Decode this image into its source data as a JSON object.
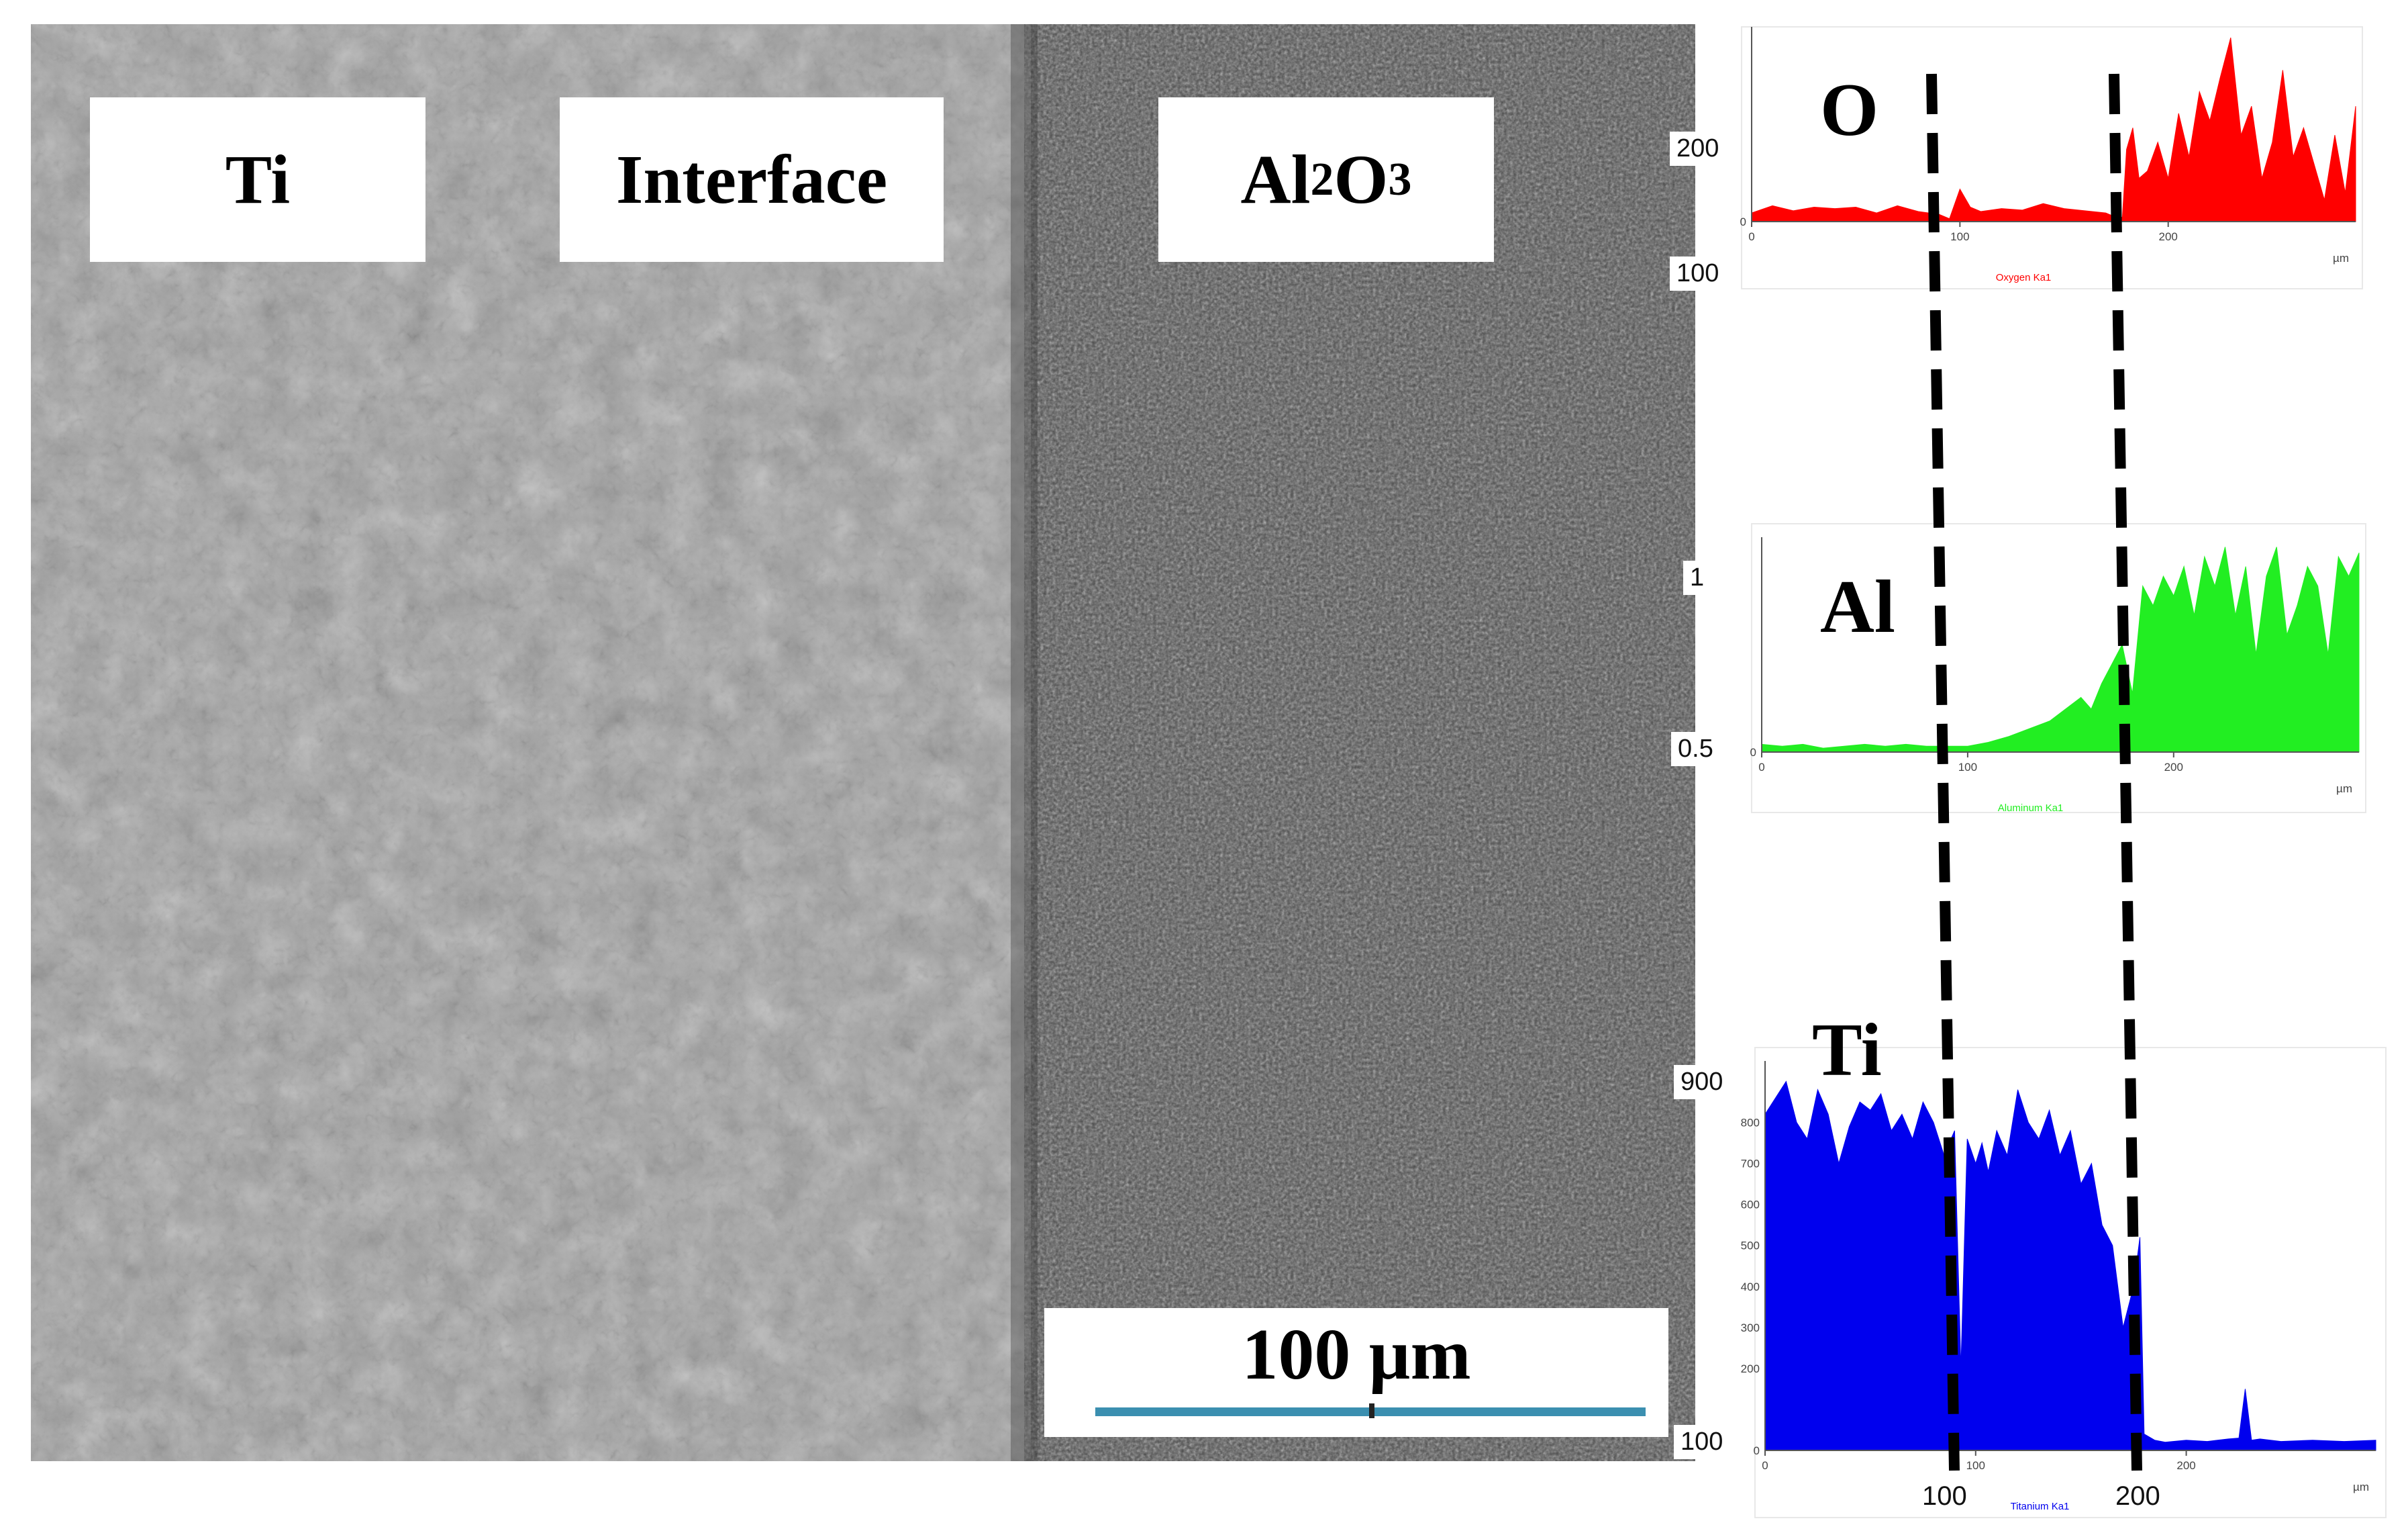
{
  "colors": {
    "oxygen": "#ff0000",
    "aluminum": "#22ee22",
    "titanium": "#0000ee",
    "scale_bar": "#3b8fb0",
    "ti_region": "#a3a3a3",
    "al2o3_region": "#4a4a4a"
  },
  "micrograph": {
    "labels": {
      "ti": "Ti",
      "interface_label": "Interface",
      "al2o3_main": "Al",
      "al2o3_sub1": "2",
      "al2o3_mid": "O",
      "al2o3_sub2": "3"
    },
    "scale_bar_label": "100 µm"
  },
  "chart_data": [
    {
      "type": "area",
      "element": "O",
      "caption": "Oxygen Ka1",
      "x_unit": "µm",
      "y_ticks_printed": [
        "200",
        "100"
      ],
      "y_tick_values": [
        200,
        100
      ],
      "x_tick_labels": [
        "0",
        "100",
        "200"
      ],
      "x_ticks": [
        0,
        100,
        200
      ],
      "xlim": [
        0,
        290
      ],
      "ylim": [
        0,
        270
      ],
      "boundaries": [
        93,
        180
      ],
      "x": [
        0,
        10,
        20,
        30,
        40,
        50,
        60,
        70,
        80,
        90,
        95,
        100,
        105,
        110,
        120,
        130,
        140,
        150,
        160,
        170,
        175,
        178,
        180,
        183,
        186,
        190,
        195,
        200,
        205,
        210,
        215,
        220,
        225,
        230,
        235,
        240,
        245,
        250,
        255,
        260,
        265,
        270,
        275,
        280,
        285,
        290
      ],
      "y": [
        12,
        22,
        15,
        20,
        18,
        20,
        12,
        22,
        14,
        10,
        4,
        45,
        20,
        14,
        18,
        16,
        25,
        18,
        15,
        12,
        6,
        6,
        100,
        130,
        60,
        70,
        110,
        60,
        150,
        90,
        180,
        140,
        200,
        255,
        120,
        160,
        60,
        110,
        210,
        90,
        130,
        80,
        30,
        120,
        40,
        160
      ],
      "series": [
        {
          "name": "O",
          "color": "#ff0000"
        }
      ]
    },
    {
      "type": "area",
      "element": "Al",
      "caption": "Aluminum Ka1",
      "x_unit": "µm",
      "y_ticks_printed": [
        "1",
        "0.5"
      ],
      "y_tick_values": [
        1,
        0.5
      ],
      "x_tick_labels": [
        "0",
        "100",
        "200"
      ],
      "x_ticks": [
        0,
        100,
        200
      ],
      "xlim": [
        0,
        290
      ],
      "ylim": [
        0,
        1.1
      ],
      "boundaries": [
        93,
        180
      ],
      "x": [
        0,
        10,
        20,
        30,
        40,
        50,
        60,
        70,
        80,
        90,
        100,
        110,
        120,
        130,
        140,
        150,
        155,
        160,
        165,
        170,
        175,
        180,
        185,
        190,
        195,
        200,
        205,
        210,
        215,
        220,
        225,
        230,
        235,
        240,
        245,
        250,
        255,
        260,
        265,
        270,
        275,
        280,
        285,
        290
      ],
      "y": [
        0.04,
        0.03,
        0.04,
        0.02,
        0.03,
        0.04,
        0.03,
        0.04,
        0.03,
        0.03,
        0.03,
        0.05,
        0.08,
        0.12,
        0.16,
        0.24,
        0.28,
        0.22,
        0.35,
        0.45,
        0.55,
        0.3,
        0.85,
        0.75,
        0.9,
        0.8,
        0.95,
        0.7,
        1.0,
        0.85,
        1.05,
        0.7,
        0.95,
        0.5,
        0.9,
        1.05,
        0.6,
        0.75,
        0.95,
        0.85,
        0.5,
        1.0,
        0.9,
        1.02
      ],
      "series": [
        {
          "name": "Al",
          "color": "#22ee22"
        }
      ]
    },
    {
      "type": "area",
      "element": "Ti",
      "caption": "Titanium Ka1",
      "x_unit": "µm",
      "y_ticks_printed": [
        "900",
        "100"
      ],
      "y_tick_values": [
        900,
        100
      ],
      "y_small_ticks": [
        "800",
        "700",
        "600",
        "500",
        "400",
        "300",
        "200"
      ],
      "y_small_values": [
        800,
        700,
        600,
        500,
        400,
        300,
        200
      ],
      "x_tick_labels": [
        "0",
        "100",
        "200"
      ],
      "x_ticks": [
        0,
        100,
        200
      ],
      "x_big_labels": [
        "100",
        "200"
      ],
      "x_big_values": [
        93,
        180
      ],
      "xlim": [
        0,
        290
      ],
      "ylim": [
        0,
        950
      ],
      "boundaries": [
        93,
        180
      ],
      "x": [
        0,
        5,
        10,
        15,
        20,
        25,
        30,
        35,
        40,
        45,
        50,
        55,
        60,
        65,
        70,
        75,
        80,
        85,
        90,
        93,
        96,
        100,
        103,
        106,
        110,
        115,
        120,
        125,
        130,
        135,
        140,
        145,
        150,
        155,
        160,
        165,
        170,
        175,
        178,
        180,
        185,
        190,
        200,
        210,
        220,
        225,
        228,
        231,
        235,
        245,
        260,
        275,
        290
      ],
      "y": [
        820,
        860,
        900,
        800,
        760,
        880,
        820,
        700,
        790,
        850,
        830,
        870,
        780,
        820,
        760,
        850,
        800,
        720,
        780,
        200,
        760,
        700,
        750,
        680,
        780,
        720,
        880,
        800,
        760,
        830,
        720,
        780,
        650,
        700,
        550,
        500,
        300,
        400,
        520,
        40,
        25,
        20,
        25,
        22,
        28,
        30,
        150,
        25,
        28,
        22,
        25,
        22,
        25
      ],
      "series": [
        {
          "name": "Ti",
          "color": "#0000ee"
        }
      ]
    }
  ]
}
